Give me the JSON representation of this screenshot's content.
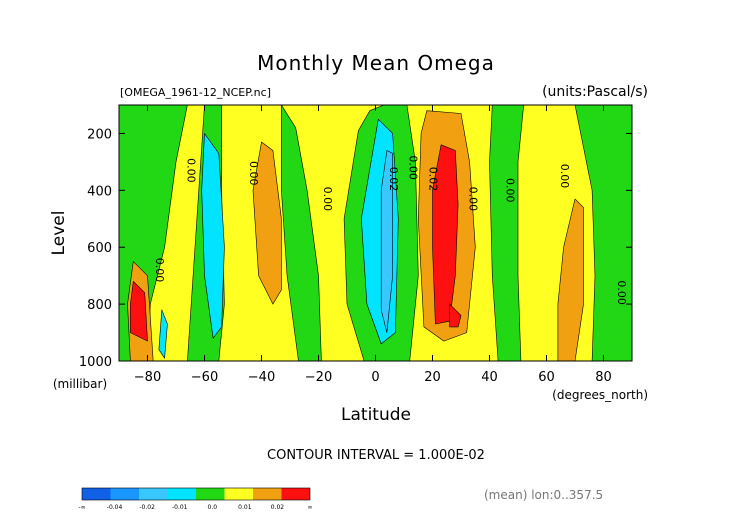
{
  "chart_data": {
    "type": "heatmap",
    "title": "Monthly Mean Omega",
    "subtitle_left": "[OMEGA_1961-12_NCEP.nc]",
    "subtitle_right": "(units:Pascal/s)",
    "xlabel": "Latitude",
    "xunit": "(degrees_north)",
    "ylabel": "Level",
    "yunit": "(millibar)",
    "xlim": [
      -90,
      90
    ],
    "ylim": [
      1000,
      100
    ],
    "x_ticks": [
      -80,
      -60,
      -40,
      -20,
      0,
      20,
      40,
      60,
      80
    ],
    "y_ticks": [
      200,
      400,
      600,
      800,
      1000
    ],
    "contour_interval_text": "CONTOUR INTERVAL = 1.000E-02",
    "footer_note": "(mean) lon:0..357.5",
    "colorbar": {
      "labels": [
        "-∞",
        "-0.04",
        "-0.02",
        "-0.01",
        "0.0",
        "0.01",
        "0.02",
        "∞"
      ],
      "colors": [
        "#1060e8",
        "#1a96ff",
        "#38c8ff",
        "#00e4ff",
        "#22d814",
        "#ffff22",
        "#f0a010",
        "#ff1010"
      ]
    },
    "contour_labels": [
      {
        "text": "0.00",
        "lat": -66,
        "lev": 330
      },
      {
        "text": "0.00",
        "lat": -44,
        "lev": 340
      },
      {
        "text": "0.00",
        "lat": -18,
        "lev": 430
      },
      {
        "text": "0.02",
        "lat": 5,
        "lev": 360
      },
      {
        "text": "0.00",
        "lat": 12,
        "lev": 320
      },
      {
        "text": "0.02",
        "lat": 19,
        "lev": 360
      },
      {
        "text": "0.00",
        "lat": 33,
        "lev": 430
      },
      {
        "text": "0.00",
        "lat": 46,
        "lev": 400
      },
      {
        "text": "0.00",
        "lat": 65,
        "lev": 350
      },
      {
        "text": "0.00",
        "lat": -77,
        "lev": 680
      },
      {
        "text": "0.00",
        "lat": 85,
        "lev": 760
      }
    ],
    "color_regions": [
      {
        "name": "green-south-subpolar",
        "color": "#22d814",
        "points": [
          [
            -90,
            100
          ],
          [
            -66,
            100
          ],
          [
            -70,
            300
          ],
          [
            -74,
            600
          ],
          [
            -79,
            800
          ],
          [
            -80,
            1000
          ],
          [
            -90,
            1000
          ]
        ]
      },
      {
        "name": "green-south-midlat",
        "color": "#22d814",
        "points": [
          [
            -60,
            100
          ],
          [
            -54,
            100
          ],
          [
            -54,
            400
          ],
          [
            -53,
            800
          ],
          [
            -55,
            1000
          ],
          [
            -66,
            1000
          ],
          [
            -64,
            700
          ],
          [
            -62,
            400
          ]
        ]
      },
      {
        "name": "green-south-subtropics",
        "color": "#22d814",
        "points": [
          [
            -33,
            100
          ],
          [
            -28,
            180
          ],
          [
            -24,
            400
          ],
          [
            -20,
            700
          ],
          [
            -19,
            1000
          ],
          [
            -27,
            1000
          ],
          [
            -31,
            700
          ],
          [
            -33,
            400
          ]
        ]
      },
      {
        "name": "green-equator-ring",
        "color": "#22d814",
        "points": [
          [
            -6,
            190
          ],
          [
            -2,
            120
          ],
          [
            3,
            100
          ],
          [
            11,
            100
          ],
          [
            14,
            300
          ],
          [
            15,
            700
          ],
          [
            12,
            1000
          ],
          [
            -4,
            1000
          ],
          [
            -10,
            800
          ],
          [
            -11,
            500
          ]
        ]
      },
      {
        "name": "green-north-midlat",
        "color": "#22d814",
        "points": [
          [
            41,
            100
          ],
          [
            52,
            100
          ],
          [
            50,
            300
          ],
          [
            50,
            700
          ],
          [
            51,
            1000
          ],
          [
            43,
            1000
          ],
          [
            41,
            700
          ],
          [
            40,
            300
          ]
        ]
      },
      {
        "name": "green-north-subpolar",
        "color": "#22d814",
        "points": [
          [
            70,
            100
          ],
          [
            90,
            100
          ],
          [
            90,
            1000
          ],
          [
            76,
            1000
          ],
          [
            77,
            700
          ],
          [
            76,
            400
          ]
        ]
      },
      {
        "name": "cyan-south-midlat",
        "color": "#00e4ff",
        "points": [
          [
            -60,
            200
          ],
          [
            -55,
            270
          ],
          [
            -53,
            600
          ],
          [
            -54,
            880
          ],
          [
            -57,
            920
          ],
          [
            -60,
            700
          ],
          [
            -61,
            400
          ]
        ]
      },
      {
        "name": "cyan-equator",
        "color": "#00e4ff",
        "points": [
          [
            1,
            150
          ],
          [
            6,
            200
          ],
          [
            8,
            500
          ],
          [
            7,
            900
          ],
          [
            2,
            940
          ],
          [
            -3,
            800
          ],
          [
            -5,
            500
          ]
        ]
      },
      {
        "name": "cyan-south-edge",
        "color": "#00e4ff",
        "points": [
          [
            -75,
            820
          ],
          [
            -73,
            870
          ],
          [
            -74,
            990
          ],
          [
            -76,
            960
          ]
        ]
      },
      {
        "name": "light-blue-equator",
        "color": "#38c8ff",
        "points": [
          [
            4,
            260
          ],
          [
            6,
            270
          ],
          [
            6,
            700
          ],
          [
            4,
            900
          ],
          [
            2,
            820
          ],
          [
            2,
            400
          ]
        ]
      },
      {
        "name": "orange-south-subtropics",
        "color": "#f0a010",
        "points": [
          [
            -40,
            230
          ],
          [
            -36,
            260
          ],
          [
            -33,
            500
          ],
          [
            -33,
            750
          ],
          [
            -36,
            800
          ],
          [
            -41,
            700
          ],
          [
            -43,
            400
          ]
        ]
      },
      {
        "name": "orange-north-tropics",
        "color": "#f0a010",
        "points": [
          [
            18,
            120
          ],
          [
            30,
            130
          ],
          [
            33,
            300
          ],
          [
            35,
            600
          ],
          [
            32,
            900
          ],
          [
            24,
            930
          ],
          [
            17,
            880
          ],
          [
            15,
            500
          ],
          [
            16,
            200
          ]
        ]
      },
      {
        "name": "orange-north-subpolar",
        "color": "#f0a010",
        "points": [
          [
            70,
            430
          ],
          [
            73,
            460
          ],
          [
            73,
            800
          ],
          [
            70,
            1000
          ],
          [
            64,
            1000
          ],
          [
            64,
            800
          ],
          [
            66,
            600
          ]
        ]
      },
      {
        "name": "orange-south-edge",
        "color": "#f0a010",
        "points": [
          [
            -85,
            650
          ],
          [
            -80,
            700
          ],
          [
            -78,
            1000
          ],
          [
            -86,
            1000
          ],
          [
            -87,
            800
          ]
        ]
      },
      {
        "name": "red-north-tropics",
        "color": "#ff1010",
        "points": [
          [
            23,
            240
          ],
          [
            28,
            260
          ],
          [
            29,
            450
          ],
          [
            28,
            700
          ],
          [
            26,
            860
          ],
          [
            21,
            870
          ],
          [
            20,
            600
          ],
          [
            20,
            400
          ]
        ]
      },
      {
        "name": "red-north-low",
        "color": "#ff1010",
        "points": [
          [
            26,
            800
          ],
          [
            30,
            840
          ],
          [
            29,
            880
          ],
          [
            26,
            880
          ]
        ]
      },
      {
        "name": "red-south-edge",
        "color": "#ff1010",
        "points": [
          [
            -85,
            720
          ],
          [
            -81,
            760
          ],
          [
            -80,
            930
          ],
          [
            -86,
            900
          ],
          [
            -86,
            800
          ]
        ]
      }
    ]
  }
}
